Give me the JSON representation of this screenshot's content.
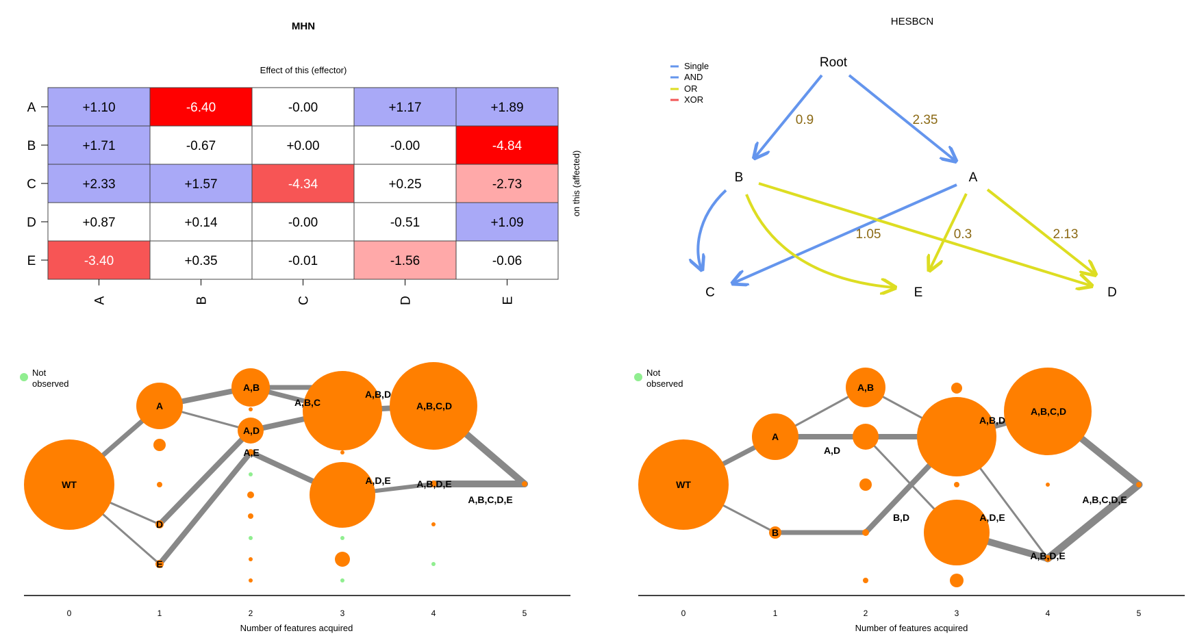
{
  "mhn": {
    "title": "MHN",
    "x_title": "Effect of this (effector)",
    "y_title": "on this (affected)",
    "rows": [
      "A",
      "B",
      "C",
      "D",
      "E"
    ],
    "cols": [
      "A",
      "B",
      "C",
      "D",
      "E"
    ],
    "values": [
      [
        "+1.10",
        "-6.40",
        "-0.00",
        "+1.17",
        "+1.89"
      ],
      [
        "+1.71",
        "-0.67",
        "+0.00",
        "-0.00",
        "-4.84"
      ],
      [
        "+2.33",
        "+1.57",
        "-4.34",
        "+0.25",
        "-2.73"
      ],
      [
        "+0.87",
        "+0.14",
        "-0.00",
        "-0.51",
        "+1.09"
      ],
      [
        "-3.40",
        "+0.35",
        "-0.01",
        "-1.56",
        "-0.06"
      ]
    ],
    "cell_colors": [
      [
        "#a9a9f7",
        "#ff0000",
        "#ffffff",
        "#a9a9f7",
        "#a9a9f7"
      ],
      [
        "#a9a9f7",
        "#ffffff",
        "#ffffff",
        "#ffffff",
        "#ff0000"
      ],
      [
        "#a9a9f7",
        "#a9a9f7",
        "#f75555",
        "#ffffff",
        "#ffa9a9"
      ],
      [
        "#ffffff",
        "#ffffff",
        "#ffffff",
        "#ffffff",
        "#a9a9f7"
      ],
      [
        "#f75555",
        "#ffffff",
        "#ffffff",
        "#ffa9a9",
        "#ffffff"
      ]
    ]
  },
  "hesbcn": {
    "title": "HESBCN",
    "legend": [
      {
        "label": "Single",
        "color": "#6495ed"
      },
      {
        "label": "AND",
        "color": "#6495ed"
      },
      {
        "label": "OR",
        "color": "#dddd22"
      },
      {
        "label": "XOR",
        "color": "#f25555"
      }
    ],
    "nodes": {
      "root": "Root",
      "A": "A",
      "B": "B",
      "C": "C",
      "D": "D",
      "E": "E"
    },
    "edge_labels": [
      "0.9",
      "2.35",
      "1.05",
      "0.3",
      "2.13"
    ],
    "label_color": "#8b6914"
  },
  "trans_left": {
    "legend_label": "Not observed",
    "legend_line1": "Not",
    "legend_line2": "observed",
    "xlabel": "Number of features acquired",
    "ticks": [
      "0",
      "1",
      "2",
      "3",
      "4",
      "5"
    ],
    "labels": {
      "WT": "WT",
      "A": "A",
      "D": "D",
      "E": "E",
      "AB": "A,B",
      "AD": "A,D",
      "AE": "A,E",
      "ABC": "A,B,C",
      "ABD": "A,B,D",
      "ADE": "A,D,E",
      "ABCD": "A,B,C,D",
      "ABDE": "A,B,D,E",
      "ABCDE": "A,B,C,D,E"
    }
  },
  "trans_right": {
    "legend_line1": "Not",
    "legend_line2": "observed",
    "xlabel": "Number of features acquired",
    "ticks": [
      "0",
      "1",
      "2",
      "3",
      "4",
      "5"
    ],
    "labels": {
      "WT": "WT",
      "A": "A",
      "B": "B",
      "AB": "A,B",
      "AD": "A,D",
      "BD": "B,D",
      "ABD": "A,B,D",
      "ADE": "A,D,E",
      "ABCD": "A,B,C,D",
      "ABDE": "A,B,D,E",
      "ABCDE": "A,B,C,D,E"
    }
  },
  "colors": {
    "node": "#ff7f00",
    "not_observed": "#90ee90",
    "edge": "#888888"
  }
}
